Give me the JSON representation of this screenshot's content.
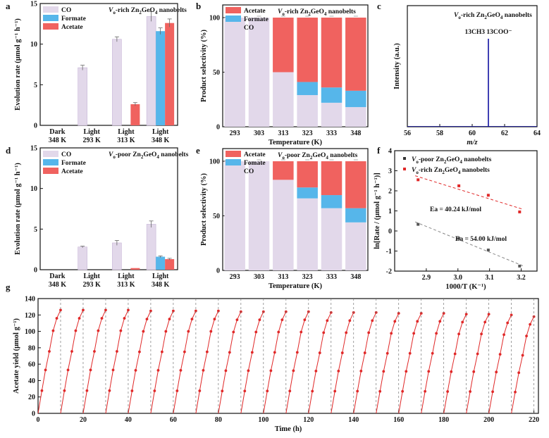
{
  "colors": {
    "co": "#e2d8ea",
    "co_edge": "#c7b6d6",
    "formate": "#56b6ea",
    "acetate": "#f0625f",
    "black": "#222222",
    "red": "#e02828",
    "blue": "#1010a0"
  },
  "chart_data": [
    {
      "panel": "a",
      "type": "bar",
      "title": "Vo-rich Zn2GeO4 nanobelts",
      "ylabel": "Evolution rate (μmol g⁻¹ h⁻¹)",
      "ylim": [
        0,
        15
      ],
      "yticks": [
        "0",
        "5",
        "10",
        "15"
      ],
      "categories": [
        [
          "Dark",
          "348 K"
        ],
        [
          "Light",
          "293 K"
        ],
        [
          "Light",
          "313 K"
        ],
        [
          "Light",
          "348 K"
        ]
      ],
      "series": [
        {
          "name": "CO",
          "values": [
            0,
            7.1,
            10.6,
            13.4
          ],
          "errors": [
            0,
            0.3,
            0.3,
            0.6
          ]
        },
        {
          "name": "Formate",
          "values": [
            0,
            0,
            0,
            11.6
          ],
          "errors": [
            0,
            0,
            0,
            0.4
          ]
        },
        {
          "name": "Acetate",
          "values": [
            0,
            0,
            2.6,
            12.6
          ],
          "errors": [
            0,
            0,
            0.2,
            0.5
          ]
        }
      ]
    },
    {
      "panel": "b",
      "type": "stacked_bar",
      "title": "Vo-rich Zn2GeO4 nanobelts",
      "xlabel": "Temperature (K)",
      "ylabel": "Product selectivity (%)",
      "ylim": [
        0,
        100
      ],
      "yticks": [
        "0",
        "50",
        "100"
      ],
      "categories": [
        "293",
        "303",
        "313",
        "323",
        "333",
        "348"
      ],
      "series": [
        {
          "name": "CO",
          "values": [
            100,
            100,
            50,
            29,
            22,
            18
          ]
        },
        {
          "name": "Formate",
          "values": [
            0,
            0,
            0,
            12,
            14,
            15
          ]
        },
        {
          "name": "Acetate",
          "values": [
            0,
            0,
            50,
            59,
            64,
            67
          ]
        }
      ]
    },
    {
      "panel": "c",
      "type": "line",
      "title": "Vo-rich Zn2GeO4 nanobelts",
      "annotation": "13CH3 13COO⁻",
      "xlabel": "m/z",
      "ylabel": "Intensity (a.u.)",
      "xlim": [
        56,
        64
      ],
      "xticks": [
        "56",
        "58",
        "60",
        "62",
        "64"
      ],
      "peak_x": 61
    },
    {
      "panel": "d",
      "type": "bar",
      "title": "Vo-poor Zn2GeO4 nanobelts",
      "ylabel": "Evolution rate (μmol g⁻¹ h⁻¹)",
      "ylim": [
        0,
        15
      ],
      "yticks": [
        "0",
        "5",
        "10",
        "15"
      ],
      "categories": [
        [
          "Dark",
          "348 K"
        ],
        [
          "Light",
          "293 K"
        ],
        [
          "Light",
          "313 K"
        ],
        [
          "Light",
          "348 K"
        ]
      ],
      "series": [
        {
          "name": "CO",
          "values": [
            0,
            2.8,
            3.3,
            5.6
          ],
          "errors": [
            0,
            0.1,
            0.3,
            0.4
          ]
        },
        {
          "name": "Formate",
          "values": [
            0,
            0,
            0,
            1.6
          ],
          "errors": [
            0,
            0,
            0,
            0.1
          ]
        },
        {
          "name": "Acetate",
          "values": [
            0,
            0,
            0.2,
            1.3
          ],
          "errors": [
            0,
            0,
            0,
            0.1
          ]
        }
      ]
    },
    {
      "panel": "e",
      "type": "stacked_bar",
      "title": "Vo-poor Zn2GeO4 nanobelts",
      "xlabel": "Temperature (K)",
      "ylabel": "Product selectivity (%)",
      "ylim": [
        0,
        100
      ],
      "yticks": [
        "0",
        "50",
        "100"
      ],
      "categories": [
        "293",
        "303",
        "313",
        "323",
        "333",
        "348"
      ],
      "series": [
        {
          "name": "CO",
          "values": [
            100,
            100,
            83,
            66,
            57,
            44
          ]
        },
        {
          "name": "Fomate",
          "values": [
            0,
            0,
            0,
            10,
            12,
            13
          ]
        },
        {
          "name": "Acetate",
          "values": [
            0,
            0,
            17,
            24,
            31,
            43
          ]
        }
      ]
    },
    {
      "panel": "f",
      "type": "scatter",
      "xlabel": "1000/T (K⁻¹)",
      "ylabel": "ln[Rate / (μmol g⁻¹ h⁻¹)]",
      "xlim": [
        2.8,
        3.25
      ],
      "ylim": [
        -2,
        4
      ],
      "xticks": [
        "2.9",
        "3.0",
        "3.1",
        "3.2"
      ],
      "yticks": [
        "-2",
        "-1",
        "0",
        "1",
        "2",
        "3",
        "4"
      ],
      "series": [
        {
          "name": "Vo-poor Zn2GeO4 nanobelts",
          "x": [
            2.874,
            3.003,
            3.096,
            3.195
          ],
          "y": [
            0.33,
            -0.37,
            -0.95,
            -1.75
          ],
          "fit": "Ea = 54.00 kJ/mol"
        },
        {
          "name": "Vo-rich Zn2GeO4 nanobelts",
          "x": [
            2.874,
            3.003,
            3.096,
            3.195
          ],
          "y": [
            2.55,
            2.25,
            1.78,
            0.95
          ],
          "fit": "Ea = 40.24 kJ/mol"
        }
      ]
    },
    {
      "panel": "g",
      "type": "line",
      "xlabel": "Time (h)",
      "ylabel": "Acetate yield (μmol g⁻¹)",
      "xlim": [
        0,
        222
      ],
      "ylim": [
        0,
        140
      ],
      "xticks": [
        "0",
        "20",
        "40",
        "60",
        "80",
        "100",
        "120",
        "140",
        "160",
        "180",
        "200",
        "220"
      ],
      "yticks": [
        "0",
        "20",
        "40",
        "60",
        "80",
        "100",
        "120",
        "140"
      ],
      "cycle_hours": 10,
      "cycles": 22,
      "cycle_points_t": [
        0,
        1.7,
        3.3,
        5.0,
        6.7,
        8.3,
        10
      ],
      "cycle_fraction": [
        0,
        0.22,
        0.42,
        0.6,
        0.8,
        0.92,
        1.0
      ],
      "cycle_max": [
        126,
        126,
        126,
        126,
        125,
        125,
        125,
        125,
        124,
        124,
        124,
        124,
        123,
        123,
        123,
        122,
        122,
        122,
        121,
        121,
        120,
        118
      ]
    }
  ]
}
